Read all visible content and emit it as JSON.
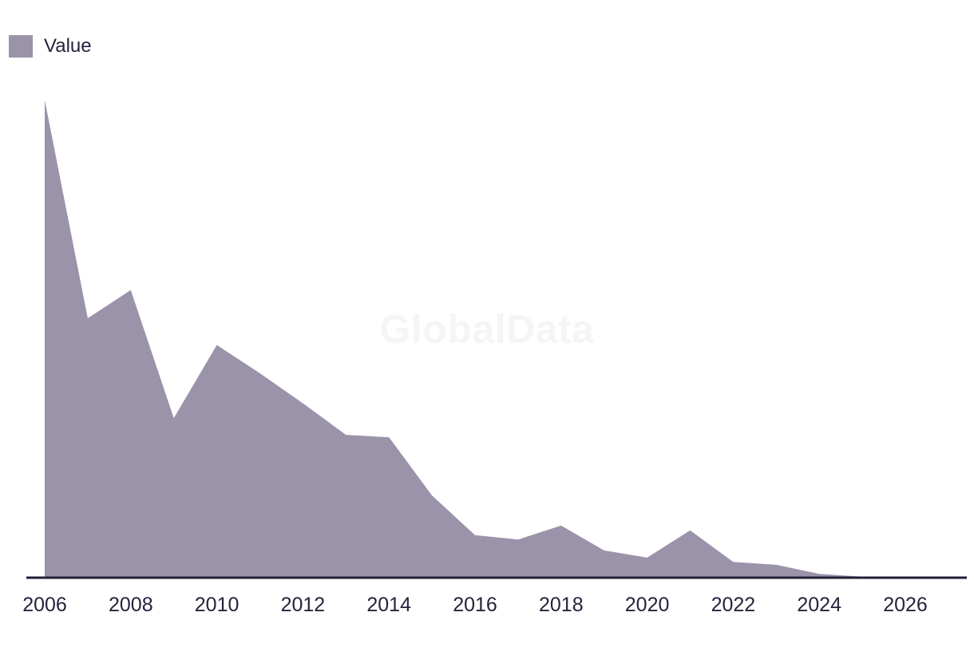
{
  "legend": {
    "items": [
      {
        "label": "Value",
        "color": "#9a93aa"
      }
    ]
  },
  "watermark": "GlobalData",
  "colors": {
    "series_fill": "#9a93aa",
    "axis_line": "#1f1f38",
    "tick_text": "#24243e",
    "watermark_text": "#f5f5f5",
    "background": "#ffffff"
  },
  "chart_data": {
    "type": "area",
    "title": "",
    "xlabel": "",
    "ylabel": "",
    "legend_position": "top-left",
    "grid": false,
    "y_axis_visible": false,
    "x": [
      2006,
      2007,
      2008,
      2009,
      2010,
      2011,
      2012,
      2013,
      2014,
      2015,
      2016,
      2017,
      2018,
      2019,
      2020,
      2021,
      2022,
      2023,
      2024,
      2025,
      2026,
      2027
    ],
    "series": [
      {
        "name": "Value",
        "values": [
          100,
          54.3,
          60.2,
          33.4,
          48.7,
          42.8,
          36.5,
          29.9,
          29.4,
          17.2,
          8.9,
          8.0,
          10.9,
          5.7,
          4.2,
          9.9,
          3.3,
          2.7,
          0.8,
          0.2,
          0,
          0
        ]
      }
    ],
    "values_note": "relative scale, 2006 peak = 100 (no y-axis shown in chart)",
    "xlim": [
      2005.6,
      2027.4
    ],
    "ylim": [
      0,
      100
    ],
    "x_tick_labels": [
      "2006",
      "2008",
      "2010",
      "2012",
      "2014",
      "2016",
      "2018",
      "2020",
      "2022",
      "2024",
      "2026"
    ]
  }
}
